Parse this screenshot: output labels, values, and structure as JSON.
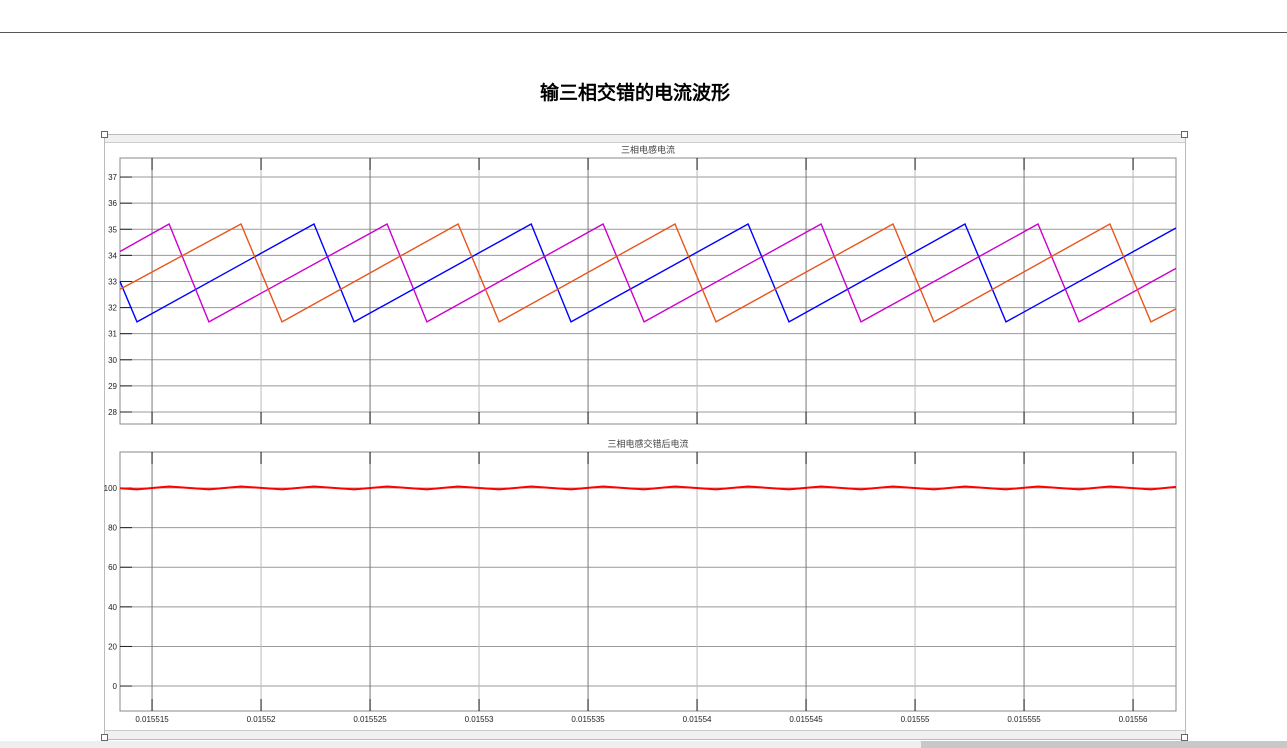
{
  "document": {
    "title": "输三相交错的电流波形"
  },
  "chart_data": [
    {
      "type": "line",
      "title": "三相电感电流",
      "xlim": [
        0.01551353,
        0.01556197
      ],
      "ylim": [
        27.54,
        37.73
      ],
      "xticks": [
        0.015515,
        0.01552,
        0.015525,
        0.01553,
        0.015535,
        0.01554,
        0.015545,
        0.01555,
        0.015555,
        0.01556
      ],
      "xtick_labels": [
        "0.015515",
        "0.01552",
        "0.015525",
        "0.01553",
        "0.015535",
        "0.01554",
        "0.015545",
        "0.01555",
        "0.015555",
        "0.01556"
      ],
      "yticks": [
        28,
        29,
        30,
        31,
        32,
        33,
        34,
        35,
        36,
        37
      ],
      "ytick_labels": [
        "28",
        "29",
        "30",
        "31",
        "32",
        "33",
        "34",
        "35",
        "36",
        "37"
      ],
      "grid": true,
      "series": [
        {
          "color": "#0000ff",
          "x": [
            0.01551353,
            0.01551431,
            0.01552243,
            0.01552427,
            0.01553239,
            0.01553422,
            0.01554234,
            0.01554422,
            0.01555229,
            0.01555417,
            0.01556197
          ],
          "y": [
            33.0,
            31.45,
            35.2,
            31.45,
            35.2,
            31.45,
            35.2,
            31.45,
            35.2,
            31.45,
            35.05
          ]
        },
        {
          "color": "#cc00cc",
          "x": [
            0.01551353,
            0.01551578,
            0.01551761,
            0.01552578,
            0.01552761,
            0.01553569,
            0.01553757,
            0.01554569,
            0.01554752,
            0.01555564,
            0.01555752,
            0.01556197
          ],
          "y": [
            34.15,
            35.2,
            31.45,
            35.2,
            31.45,
            35.2,
            31.45,
            35.2,
            31.45,
            35.2,
            31.45,
            33.5
          ]
        },
        {
          "color": "#e8561c",
          "x": [
            0.01551353,
            0.01551908,
            0.01552096,
            0.01552904,
            0.01553092,
            0.01553899,
            0.01554087,
            0.01554899,
            0.01555087,
            0.01555894,
            0.01556082,
            0.01556197
          ],
          "y": [
            32.7,
            35.2,
            31.45,
            35.2,
            31.45,
            35.2,
            31.45,
            35.2,
            31.45,
            35.2,
            31.45,
            31.95
          ]
        }
      ]
    },
    {
      "type": "line",
      "title": "三相电感交错后电流",
      "xlim": [
        0.01551353,
        0.01556197
      ],
      "ylim": [
        -12.6,
        118.2
      ],
      "xticks": [
        0.015515,
        0.01552,
        0.015525,
        0.01553,
        0.015535,
        0.01554,
        0.015545,
        0.01555,
        0.015555,
        0.01556
      ],
      "xtick_labels": [
        "0.015515",
        "0.01552",
        "0.015525",
        "0.01553",
        "0.015535",
        "0.01554",
        "0.015545",
        "0.01555",
        "0.015555",
        "0.01556"
      ],
      "yticks": [
        0,
        20,
        40,
        60,
        80,
        100
      ],
      "ytick_labels": [
        "0",
        "20",
        "40",
        "60",
        "80",
        "100"
      ],
      "grid": true,
      "series": [
        {
          "color": "#ff0000",
          "x": [
            0.01551353,
            0.01551431,
            0.01551578,
            0.01551761,
            0.01551908,
            0.01552096,
            0.01552243,
            0.01552427,
            0.01552578,
            0.01552761,
            0.01552904,
            0.01553092,
            0.01553239,
            0.01553422,
            0.01553569,
            0.01553757,
            0.01553899,
            0.01554087,
            0.01554234,
            0.01554422,
            0.01554569,
            0.01554752,
            0.01554899,
            0.01555087,
            0.01555229,
            0.01555417,
            0.01555564,
            0.01555752,
            0.01555894,
            0.01556082,
            0.01556197
          ],
          "y": [
            99.9,
            99.3,
            100.8,
            99.3,
            100.8,
            99.3,
            100.8,
            99.3,
            100.8,
            99.3,
            100.8,
            99.3,
            100.8,
            99.3,
            100.8,
            99.3,
            100.8,
            99.3,
            100.8,
            99.3,
            100.8,
            99.3,
            100.8,
            99.3,
            100.8,
            99.3,
            100.8,
            99.3,
            100.8,
            99.3,
            100.6
          ]
        }
      ]
    }
  ]
}
